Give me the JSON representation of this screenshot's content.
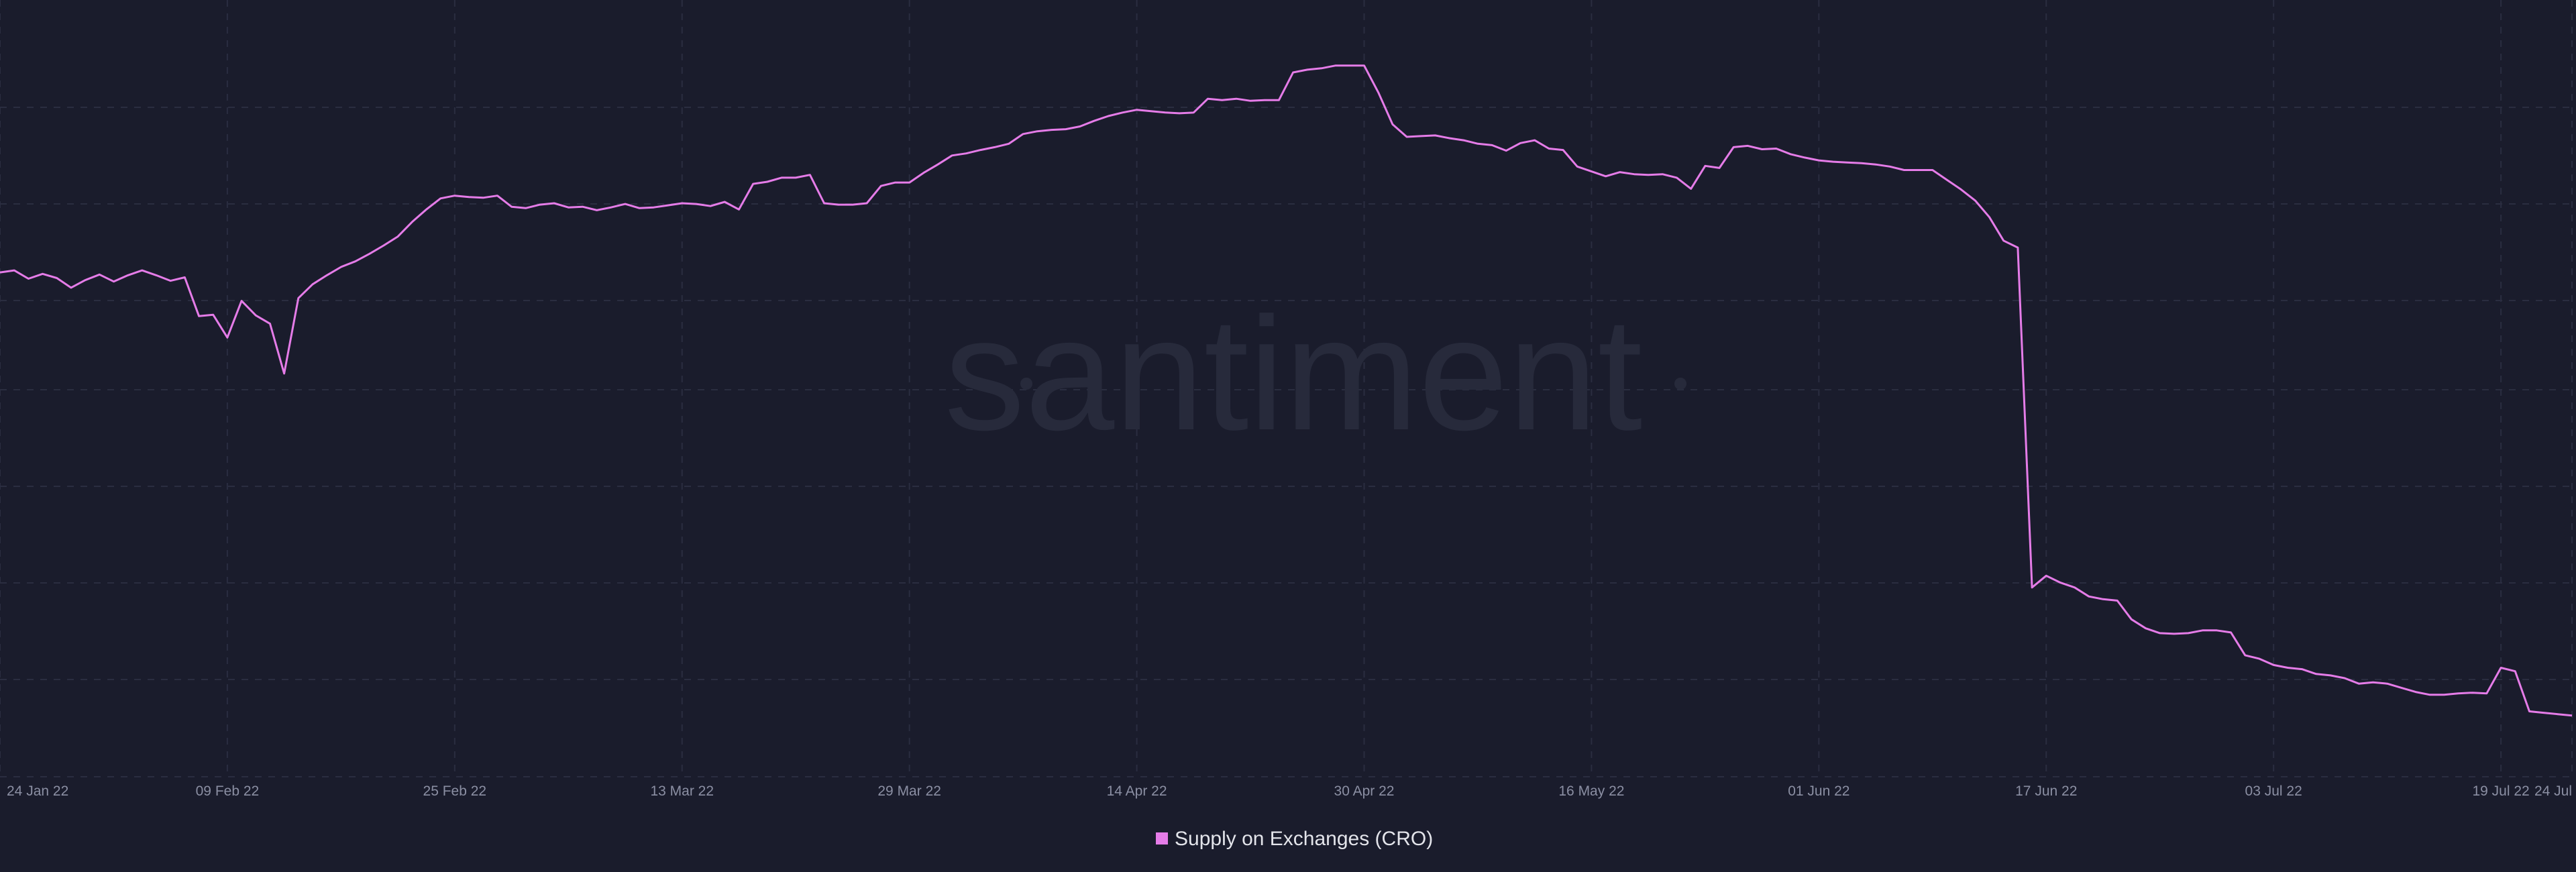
{
  "watermark": "santiment",
  "colors": {
    "background": "#1a1c2c",
    "series_line": "#e57ce8",
    "grid": "#2a2d40"
  },
  "chart_data": {
    "type": "line",
    "title": "",
    "xlabel": "",
    "ylabel": "",
    "y_axis_labels_visible": false,
    "grid": true,
    "legend_position": "bottom-center",
    "x_tick_labels": [
      "24 Jan 22",
      "09 Feb 22",
      "25 Feb 22",
      "13 Mar 22",
      "29 Mar 22",
      "14 Apr 22",
      "30 Apr 22",
      "16 May 22",
      "01 Jun 22",
      "17 Jun 22",
      "03 Jul 22",
      "19 Jul 22",
      "24 Jul"
    ],
    "x_tick_values": [
      0,
      16,
      32,
      48,
      64,
      80,
      96,
      112,
      128,
      144,
      160,
      176,
      181
    ],
    "ylim": [
      0,
      100
    ],
    "series": [
      {
        "name": "Supply on Exchanges (CRO)",
        "color": "#e57ce8",
        "points": [
          [
            0,
            68.0
          ],
          [
            1,
            68.3
          ],
          [
            2,
            67.1
          ],
          [
            3,
            67.8
          ],
          [
            4,
            67.2
          ],
          [
            5,
            65.8
          ],
          [
            6,
            66.9
          ],
          [
            7,
            67.7
          ],
          [
            8,
            66.7
          ],
          [
            9,
            67.6
          ],
          [
            10,
            68.3
          ],
          [
            11,
            67.6
          ],
          [
            12,
            66.8
          ],
          [
            13,
            67.3
          ],
          [
            14,
            61.7
          ],
          [
            15,
            61.9
          ],
          [
            16,
            58.6
          ],
          [
            17,
            63.9
          ],
          [
            18,
            61.8
          ],
          [
            19,
            60.6
          ],
          [
            20,
            53.4
          ],
          [
            21,
            64.3
          ],
          [
            22,
            66.3
          ],
          [
            23,
            67.6
          ],
          [
            24,
            68.8
          ],
          [
            25,
            69.6
          ],
          [
            26,
            70.7
          ],
          [
            27,
            71.9
          ],
          [
            28,
            73.2
          ],
          [
            29,
            75.3
          ],
          [
            30,
            77.1
          ],
          [
            31,
            78.7
          ],
          [
            32,
            79.1
          ],
          [
            33,
            78.9
          ],
          [
            34,
            78.8
          ],
          [
            35,
            79.1
          ],
          [
            36,
            77.5
          ],
          [
            37,
            77.3
          ],
          [
            38,
            77.8
          ],
          [
            39,
            78.0
          ],
          [
            40,
            77.4
          ],
          [
            41,
            77.5
          ],
          [
            42,
            77.0
          ],
          [
            43,
            77.4
          ],
          [
            44,
            77.9
          ],
          [
            45,
            77.3
          ],
          [
            46,
            77.4
          ],
          [
            47,
            77.7
          ],
          [
            48,
            78.0
          ],
          [
            49,
            77.9
          ],
          [
            50,
            77.6
          ],
          [
            51,
            78.2
          ],
          [
            52,
            77.1
          ],
          [
            53,
            80.8
          ],
          [
            54,
            81.1
          ],
          [
            55,
            81.7
          ],
          [
            56,
            81.7
          ],
          [
            57,
            82.1
          ],
          [
            58,
            78.0
          ],
          [
            59,
            77.8
          ],
          [
            60,
            77.8
          ],
          [
            61,
            78.0
          ],
          [
            62,
            80.5
          ],
          [
            63,
            81.0
          ],
          [
            64,
            81.0
          ],
          [
            65,
            82.4
          ],
          [
            66,
            83.6
          ],
          [
            67,
            84.9
          ],
          [
            68,
            85.2
          ],
          [
            69,
            85.7
          ],
          [
            70,
            86.1
          ],
          [
            71,
            86.6
          ],
          [
            72,
            88.0
          ],
          [
            73,
            88.4
          ],
          [
            74,
            88.6
          ],
          [
            75,
            88.7
          ],
          [
            76,
            89.1
          ],
          [
            77,
            89.9
          ],
          [
            78,
            90.6
          ],
          [
            79,
            91.1
          ],
          [
            80,
            91.5
          ],
          [
            81,
            91.3
          ],
          [
            82,
            91.1
          ],
          [
            83,
            91.0
          ],
          [
            84,
            91.1
          ],
          [
            85,
            93.1
          ],
          [
            86,
            92.9
          ],
          [
            87,
            93.1
          ],
          [
            88,
            92.8
          ],
          [
            89,
            92.9
          ],
          [
            90,
            92.9
          ],
          [
            91,
            96.9
          ],
          [
            92,
            97.3
          ],
          [
            93,
            97.5
          ],
          [
            94,
            97.9
          ],
          [
            95,
            97.9
          ],
          [
            96,
            97.9
          ],
          [
            97,
            94.0
          ],
          [
            98,
            89.4
          ],
          [
            99,
            87.6
          ],
          [
            100,
            87.7
          ],
          [
            101,
            87.8
          ],
          [
            102,
            87.4
          ],
          [
            103,
            87.1
          ],
          [
            104,
            86.6
          ],
          [
            105,
            86.4
          ],
          [
            106,
            85.6
          ],
          [
            107,
            86.7
          ],
          [
            108,
            87.1
          ],
          [
            109,
            85.9
          ],
          [
            110,
            85.7
          ],
          [
            111,
            83.3
          ],
          [
            112,
            82.6
          ],
          [
            113,
            81.9
          ],
          [
            114,
            82.5
          ],
          [
            115,
            82.2
          ],
          [
            116,
            82.1
          ],
          [
            117,
            82.2
          ],
          [
            118,
            81.7
          ],
          [
            119,
            80.1
          ],
          [
            120,
            83.4
          ],
          [
            121,
            83.1
          ],
          [
            122,
            86.1
          ],
          [
            123,
            86.3
          ],
          [
            124,
            85.8
          ],
          [
            125,
            85.9
          ],
          [
            126,
            85.1
          ],
          [
            127,
            84.6
          ],
          [
            128,
            84.2
          ],
          [
            129,
            84.0
          ],
          [
            130,
            83.9
          ],
          [
            131,
            83.8
          ],
          [
            132,
            83.6
          ],
          [
            133,
            83.3
          ],
          [
            134,
            82.8
          ],
          [
            135,
            82.8
          ],
          [
            136,
            82.8
          ],
          [
            137,
            81.4
          ],
          [
            138,
            80.0
          ],
          [
            139,
            78.4
          ],
          [
            140,
            76.0
          ],
          [
            141,
            72.6
          ],
          [
            142,
            71.6
          ],
          [
            143,
            22.5
          ],
          [
            144,
            24.2
          ],
          [
            145,
            23.2
          ],
          [
            146,
            22.5
          ],
          [
            147,
            21.2
          ],
          [
            148,
            20.8
          ],
          [
            149,
            20.6
          ],
          [
            150,
            17.9
          ],
          [
            151,
            16.6
          ],
          [
            152,
            15.9
          ],
          [
            153,
            15.8
          ],
          [
            154,
            15.9
          ],
          [
            155,
            16.3
          ],
          [
            156,
            16.3
          ],
          [
            157,
            16.0
          ],
          [
            158,
            12.7
          ],
          [
            159,
            12.2
          ],
          [
            160,
            11.3
          ],
          [
            161,
            10.9
          ],
          [
            162,
            10.7
          ],
          [
            163,
            10.0
          ],
          [
            164,
            9.8
          ],
          [
            165,
            9.4
          ],
          [
            166,
            8.6
          ],
          [
            167,
            8.8
          ],
          [
            168,
            8.6
          ],
          [
            169,
            8.0
          ],
          [
            170,
            7.4
          ],
          [
            171,
            7.0
          ],
          [
            172,
            7.0
          ],
          [
            173,
            7.2
          ],
          [
            174,
            7.3
          ],
          [
            175,
            7.2
          ],
          [
            176,
            10.9
          ],
          [
            177,
            10.4
          ],
          [
            178,
            4.6
          ],
          [
            179,
            4.4
          ],
          [
            180,
            4.2
          ],
          [
            181,
            4.0
          ]
        ]
      }
    ]
  }
}
